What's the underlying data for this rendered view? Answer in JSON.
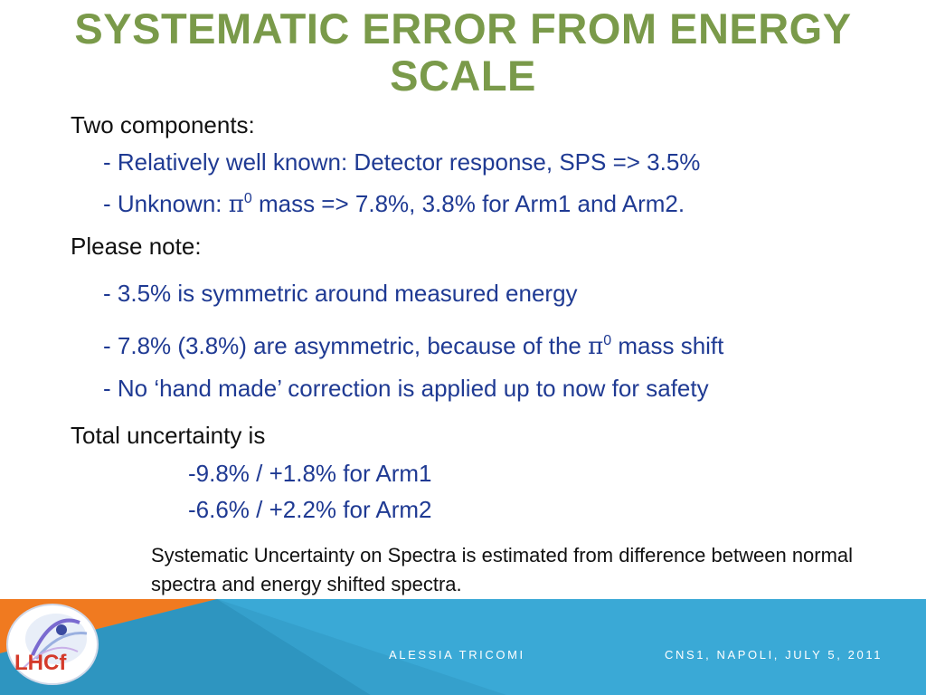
{
  "slide": {
    "title_line1": "SYSTEMATIC ERROR FROM ENERGY",
    "title_line2": "SCALE",
    "colors": {
      "title": "#7a9a4a",
      "body_black": "#111111",
      "body_blue": "#1f3a93",
      "footer_blue": "#3aa9d6",
      "footer_orange": "#f07a20"
    }
  },
  "components": {
    "heading": "Two components:",
    "item1": "- Relatively well known: Detector response, SPS => 3.5%",
    "item2_prefix": "- Unknown: ",
    "item2_pi": "π",
    "item2_sup": "0",
    "item2_suffix": " mass => 7.8%, 3.8% for Arm1 and Arm2."
  },
  "note_section": {
    "heading": "Please note:",
    "item1": "- 3.5% is symmetric around measured energy",
    "item2_prefix": "- 7.8% (3.8%) are asymmetric, because of the ",
    "item2_pi": "π",
    "item2_sup": "0",
    "item2_suffix": " mass shift",
    "item3": "- No ‘hand made’ correction is applied up to now for safety"
  },
  "total": {
    "heading": "Total uncertainty is",
    "arm1": "-9.8% / +1.8% for Arm1",
    "arm2": "-6.6% / +2.2% for Arm2"
  },
  "footnote": "Systematic Uncertainty on Spectra is estimated from difference between normal spectra and energy shifted spectra.",
  "footer": {
    "author": "ALESSIA TRICOMI",
    "venue": "CNS1, NAPOLI, JULY 5, 2011",
    "logo_text": "LHCf",
    "logo_icon": "lhcf-logo-icon"
  }
}
